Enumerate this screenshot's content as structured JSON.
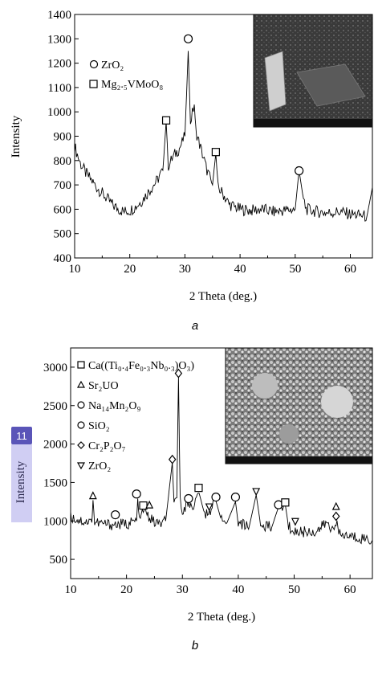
{
  "chart_data": [
    {
      "type": "line",
      "caption": "a",
      "xlabel": "2 Theta (deg.)",
      "ylabel": "Intensity",
      "xlim": [
        10,
        64
      ],
      "ylim": [
        400,
        1400
      ],
      "xticks": [
        10,
        20,
        30,
        40,
        50,
        60
      ],
      "yticks": [
        400,
        500,
        600,
        700,
        800,
        900,
        1000,
        1100,
        1200,
        1300,
        1400
      ],
      "series": [
        {
          "x": [
            10,
            11,
            12,
            13,
            14,
            15,
            16,
            17,
            18,
            19,
            20,
            21,
            22,
            23,
            24,
            25,
            26,
            26.6,
            27,
            28,
            29,
            30,
            30.6,
            31,
            31.7,
            32,
            33,
            34,
            35,
            35.6,
            36,
            37,
            38,
            40,
            42,
            44,
            46,
            48,
            50,
            50.7,
            51.5,
            52,
            54,
            56,
            58,
            60,
            62,
            63,
            64
          ],
          "y": [
            860,
            790,
            750,
            720,
            690,
            665,
            640,
            615,
            600,
            590,
            595,
            610,
            630,
            660,
            690,
            720,
            760,
            960,
            780,
            820,
            850,
            900,
            1250,
            960,
            1030,
            920,
            840,
            760,
            700,
            830,
            690,
            660,
            620,
            600,
            595,
            600,
            590,
            595,
            600,
            760,
            640,
            600,
            590,
            585,
            590,
            580,
            575,
            570,
            690
          ]
        }
      ],
      "markers": [
        {
          "shape": "circle",
          "x": 30.6,
          "y": 1300
        },
        {
          "shape": "square",
          "x": 26.6,
          "y": 965
        },
        {
          "shape": "square",
          "x": 35.6,
          "y": 835
        },
        {
          "shape": "circle",
          "x": 50.7,
          "y": 758
        }
      ],
      "legend": [
        {
          "shape": "circle",
          "label": "ZrO₂"
        },
        {
          "shape": "square",
          "label": "Mg₂.₅VMoO₈"
        }
      ],
      "inset": "SEM micrograph"
    },
    {
      "type": "line",
      "caption": "b",
      "xlabel": "2 Theta (deg.)",
      "ylabel": "Intensity",
      "xlim": [
        10,
        64
      ],
      "ylim": [
        250,
        3250
      ],
      "xticks": [
        10,
        20,
        30,
        40,
        50,
        60
      ],
      "yticks": [
        500,
        1000,
        1500,
        2000,
        2500,
        3000
      ],
      "series": [
        {
          "x": [
            10,
            12,
            13.8,
            14,
            14.3,
            16,
            18,
            20,
            21.8,
            22,
            22.3,
            23,
            24,
            25,
            26,
            27,
            28.2,
            28.5,
            29,
            29.3,
            29.6,
            30,
            31,
            32,
            33,
            34,
            35,
            36,
            37,
            38,
            39.5,
            40,
            42,
            43.2,
            44,
            46,
            47.2,
            48.4,
            49,
            50.2,
            52,
            54,
            55.8,
            56.5,
            57.5,
            58,
            60,
            62,
            64
          ],
          "y": [
            1050,
            1000,
            980,
            1270,
            980,
            960,
            950,
            960,
            1000,
            1290,
            980,
            1150,
            1050,
            980,
            960,
            1000,
            1760,
            1200,
            1300,
            2870,
            1250,
            1150,
            1230,
            1200,
            1360,
            1080,
            1150,
            1260,
            1000,
            980,
            1250,
            960,
            940,
            1340,
            950,
            920,
            1180,
            1220,
            920,
            860,
            860,
            860,
            980,
            880,
            1000,
            820,
            800,
            780,
            750
          ]
        }
      ],
      "markers": [
        {
          "shape": "triangle-up",
          "x": 14,
          "y": 1320
        },
        {
          "shape": "circle",
          "x": 18,
          "y": 1080
        },
        {
          "shape": "circle",
          "x": 21.8,
          "y": 1350
        },
        {
          "shape": "square",
          "x": 23,
          "y": 1200
        },
        {
          "shape": "triangle-up",
          "x": 24.1,
          "y": 1200
        },
        {
          "shape": "diamond",
          "x": 28.2,
          "y": 1800
        },
        {
          "shape": "diamond",
          "x": 29.3,
          "y": 2920
        },
        {
          "shape": "circle",
          "x": 31.1,
          "y": 1290
        },
        {
          "shape": "square",
          "x": 32.9,
          "y": 1430
        },
        {
          "shape": "triangle-down",
          "x": 34.8,
          "y": 1190
        },
        {
          "shape": "circle",
          "x": 36,
          "y": 1310
        },
        {
          "shape": "circle",
          "x": 39.5,
          "y": 1310
        },
        {
          "shape": "triangle-down",
          "x": 43.2,
          "y": 1390
        },
        {
          "shape": "circle",
          "x": 47.2,
          "y": 1210
        },
        {
          "shape": "square",
          "x": 48.4,
          "y": 1240
        },
        {
          "shape": "triangle-down",
          "x": 50.2,
          "y": 1000
        },
        {
          "shape": "triangle-up",
          "x": 57.5,
          "y": 1180
        },
        {
          "shape": "diamond",
          "x": 57.5,
          "y": 1060
        }
      ],
      "legend": [
        {
          "shape": "square",
          "label": "Ca((Ti₀.₄Fe₀.₃Nb₀.₃)O₃)"
        },
        {
          "shape": "triangle-up",
          "label": "Sr₂UO"
        },
        {
          "shape": "circle",
          "label": "Na₁₄Mn₂O₉"
        },
        {
          "shape": "circle",
          "label": "SiO₂"
        },
        {
          "shape": "diamond",
          "label": "Cr₂P₂O₇"
        },
        {
          "shape": "triangle-down",
          "label": "ZrO₂"
        }
      ],
      "inset": "SEM micrograph"
    }
  ],
  "overlay": {
    "badge_number": "11",
    "badge_color": "#5a55b8",
    "highlight_color": "#7873dc"
  }
}
